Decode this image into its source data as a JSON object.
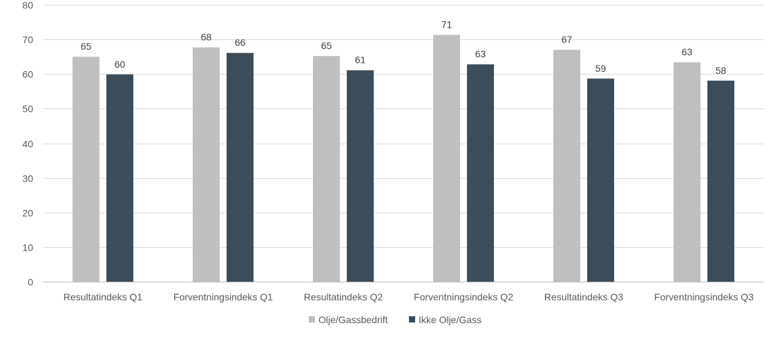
{
  "chart_data": {
    "type": "bar",
    "title": "",
    "xlabel": "",
    "ylabel": "",
    "ylim": [
      0,
      80
    ],
    "yticks": [
      0,
      10,
      20,
      30,
      40,
      50,
      60,
      70,
      80
    ],
    "grid": true,
    "legend_position": "bottom",
    "categories": [
      "Resultatindeks Q1",
      "Forventningsindeks Q1",
      "Resultatindeks Q2",
      "Forventningsindeks Q2",
      "Resultatindeks Q3",
      "Forventningsindeks Q3"
    ],
    "series": [
      {
        "name": "Olje/Gassbedrift",
        "color": "#bfbfbf",
        "values": [
          65,
          67.7,
          65.2,
          71.3,
          67,
          63.4
        ],
        "labels": [
          "65",
          "68",
          "65",
          "71",
          "67",
          "63"
        ]
      },
      {
        "name": "Ikke Olje/Gass",
        "color": "#3b4d5a",
        "values": [
          59.9,
          66.1,
          61.1,
          62.8,
          58.7,
          58.1
        ],
        "labels": [
          "60",
          "66",
          "61",
          "63",
          "59",
          "58"
        ]
      }
    ]
  }
}
